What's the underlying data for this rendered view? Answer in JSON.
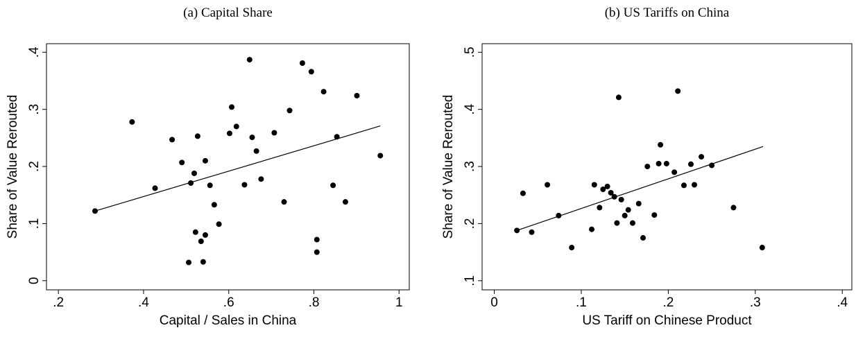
{
  "chart_data": [
    {
      "type": "scatter",
      "title": "(a) Capital Share",
      "xlabel": "Capital / Sales in China",
      "ylabel": "Share of Value Rerouted",
      "color": "#000000",
      "x": [
        0.286,
        0.373,
        0.427,
        0.467,
        0.49,
        0.511,
        0.519,
        0.527,
        0.545,
        0.556,
        0.566,
        0.577,
        0.522,
        0.535,
        0.545,
        0.506,
        0.54,
        0.602,
        0.607,
        0.618,
        0.649,
        0.637,
        0.655,
        0.665,
        0.676,
        0.707,
        0.73,
        0.743,
        0.773,
        0.794,
        0.823,
        0.807,
        0.807,
        0.845,
        0.854,
        0.874,
        0.901,
        0.956
      ],
      "values": [
        0.122,
        0.278,
        0.162,
        0.247,
        0.207,
        0.171,
        0.188,
        0.253,
        0.21,
        0.167,
        0.133,
        0.099,
        0.085,
        0.069,
        0.08,
        0.032,
        0.033,
        0.258,
        0.304,
        0.27,
        0.387,
        0.168,
        0.251,
        0.227,
        0.178,
        0.259,
        0.138,
        0.298,
        0.381,
        0.366,
        0.331,
        0.072,
        0.05,
        0.167,
        0.252,
        0.138,
        0.324,
        0.219
      ],
      "fit_x": [
        0.286,
        0.956
      ],
      "fit_y": [
        0.122,
        0.271
      ],
      "xlim": [
        0.172,
        1.024
      ],
      "ylim": [
        -0.016,
        0.415
      ],
      "xticks": [
        {
          "value": 0.2,
          "label": ".2"
        },
        {
          "value": 0.4,
          "label": ".4"
        },
        {
          "value": 0.6,
          "label": ".6"
        },
        {
          "value": 0.8,
          "label": ".8"
        },
        1
      ],
      "yticks": [
        0,
        {
          "value": 0.1,
          "label": ".1"
        },
        {
          "value": 0.2,
          "label": ".2"
        },
        {
          "value": 0.3,
          "label": ".3"
        },
        {
          "value": 0.4,
          "label": ".4"
        }
      ]
    },
    {
      "type": "scatter",
      "title": "(b) US Tariffs on China",
      "xlabel": "US Tariff on Chinese Product",
      "ylabel": "Share of Value Rerouted",
      "color": "#000000",
      "x": [
        0.026,
        0.033,
        0.043,
        0.061,
        0.074,
        0.089,
        0.112,
        0.115,
        0.121,
        0.125,
        0.13,
        0.134,
        0.138,
        0.146,
        0.141,
        0.15,
        0.154,
        0.143,
        0.159,
        0.166,
        0.171,
        0.176,
        0.184,
        0.189,
        0.191,
        0.198,
        0.207,
        0.211,
        0.218,
        0.226,
        0.23,
        0.238,
        0.25,
        0.275,
        0.308
      ],
      "values": [
        0.188,
        0.253,
        0.185,
        0.268,
        0.214,
        0.158,
        0.19,
        0.268,
        0.228,
        0.26,
        0.265,
        0.254,
        0.247,
        0.242,
        0.201,
        0.214,
        0.224,
        0.421,
        0.201,
        0.235,
        0.175,
        0.3,
        0.215,
        0.305,
        0.338,
        0.305,
        0.29,
        0.432,
        0.267,
        0.304,
        0.268,
        0.317,
        0.302,
        0.228,
        0.158
      ],
      "fit_x": [
        0.026,
        0.309
      ],
      "fit_y": [
        0.188,
        0.335
      ],
      "xlim": [
        -0.014,
        0.411
      ],
      "ylim": [
        0.084,
        0.515
      ],
      "xticks": [
        0,
        {
          "value": 0.1,
          "label": ".1"
        },
        {
          "value": 0.2,
          "label": ".2"
        },
        {
          "value": 0.3,
          "label": ".3"
        },
        {
          "value": 0.4,
          "label": ".4"
        }
      ],
      "yticks": [
        {
          "value": 0.1,
          "label": ".1"
        },
        {
          "value": 0.2,
          "label": ".2"
        },
        {
          "value": 0.3,
          "label": ".3"
        },
        {
          "value": 0.4,
          "label": ".4"
        },
        {
          "value": 0.5,
          "label": ".5"
        }
      ]
    }
  ]
}
